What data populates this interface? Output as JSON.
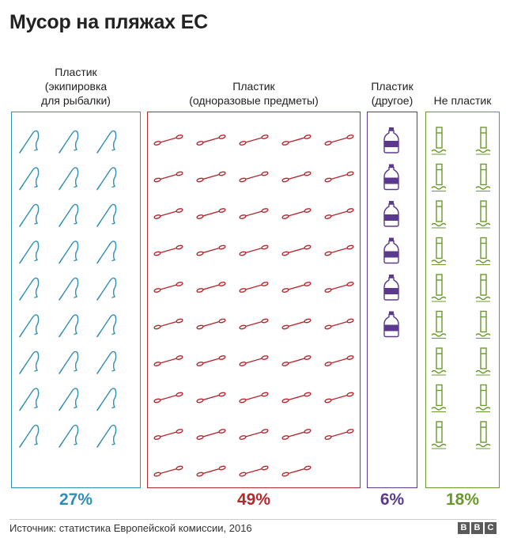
{
  "chart_data": {
    "type": "pictogram",
    "title": "Мусор на пляжах ЕС",
    "categories": [
      {
        "label": "Пластик\n(экипировка\nдля рыбалки)",
        "percent": "27%",
        "value": 27,
        "icon": "fishing-line-icon",
        "color": "#2f8fb3"
      },
      {
        "label": "Пластик\n(одноразовые предметы)",
        "percent": "49%",
        "value": 49,
        "icon": "cotton-bud-icon",
        "color": "#b5292e"
      },
      {
        "label": "Пластик\n(другое)",
        "percent": "6%",
        "value": 6,
        "icon": "plastic-bottle-icon",
        "color": "#5b3a8e"
      },
      {
        "label": "Не пластик",
        "percent": "18%",
        "value": 18,
        "icon": "cigarette-butt-icon",
        "color": "#6a9a2b"
      }
    ],
    "source": "Источник: статистика Европейской комиссии, 2016",
    "logo": "BBC"
  }
}
